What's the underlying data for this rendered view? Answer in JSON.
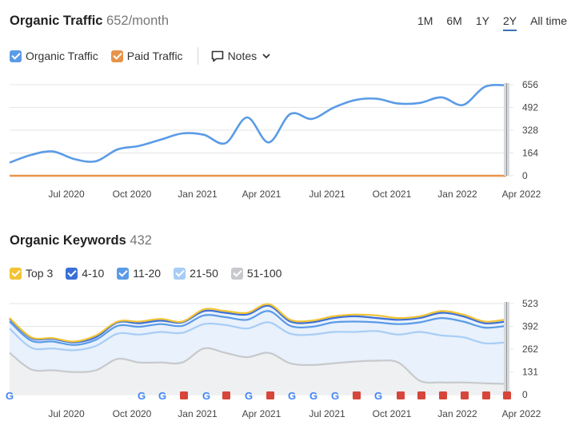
{
  "traffic": {
    "title": "Organic Traffic",
    "value": "652/month",
    "periods": [
      "1M",
      "6M",
      "1Y",
      "2Y",
      "All time"
    ],
    "selected_period": "2Y",
    "legend": [
      {
        "label": "Organic Traffic",
        "color": "#5b9be6"
      },
      {
        "label": "Paid Traffic",
        "color": "#e8934a"
      }
    ],
    "notes_label": "Notes"
  },
  "keywords": {
    "title": "Organic Keywords",
    "value": "432",
    "legend": [
      {
        "label": "Top 3",
        "color": "#f2c335"
      },
      {
        "label": "4-10",
        "color": "#3b70d6"
      },
      {
        "label": "11-20",
        "color": "#5b9be6"
      },
      {
        "label": "21-50",
        "color": "#a8cdf5"
      },
      {
        "label": "51-100",
        "color": "#c7c9cc"
      }
    ]
  },
  "x_ticks": [
    "Jul 2020",
    "Oct 2020",
    "Jan 2021",
    "Apr 2021",
    "Jul 2021",
    "Oct 2021",
    "Jan 2022",
    "Apr 2022"
  ],
  "chart_data": [
    {
      "type": "line",
      "title": "Organic Traffic",
      "y_ticks": [
        "656",
        "492",
        "328",
        "164",
        "0"
      ],
      "ylim": [
        0,
        656
      ],
      "x": [
        "May 2020",
        "Jun 2020",
        "Jul 2020",
        "Aug 2020",
        "Sep 2020",
        "Oct 2020",
        "Nov 2020",
        "Dec 2020",
        "Jan 2021",
        "Feb 2021",
        "Mar 2021",
        "Apr 2021",
        "May 2021",
        "Jun 2021",
        "Jul 2021",
        "Aug 2021",
        "Sep 2021",
        "Oct 2021",
        "Nov 2021",
        "Dec 2021",
        "Jan 2022",
        "Feb 2022",
        "Mar 2022",
        "Apr 2022"
      ],
      "series": [
        {
          "name": "Organic Traffic",
          "color": "#5b9be6",
          "values": [
            95,
            150,
            175,
            120,
            105,
            190,
            215,
            260,
            305,
            295,
            235,
            420,
            240,
            445,
            410,
            490,
            545,
            555,
            520,
            525,
            565,
            510,
            640,
            652
          ]
        },
        {
          "name": "Paid Traffic",
          "color": "#e8934a",
          "values": [
            0,
            0,
            0,
            0,
            0,
            0,
            0,
            0,
            0,
            0,
            0,
            0,
            0,
            0,
            0,
            0,
            0,
            0,
            0,
            0,
            0,
            0,
            0,
            0
          ]
        }
      ]
    },
    {
      "type": "area",
      "title": "Organic Keywords",
      "y_ticks": [
        "523",
        "392",
        "262",
        "131",
        "0"
      ],
      "ylim": [
        0,
        523
      ],
      "x": [
        "May 2020",
        "Jun 2020",
        "Jul 2020",
        "Aug 2020",
        "Sep 2020",
        "Oct 2020",
        "Nov 2020",
        "Dec 2020",
        "Jan 2021",
        "Feb 2021",
        "Mar 2021",
        "Apr 2021",
        "May 2021",
        "Jun 2021",
        "Jul 2021",
        "Aug 2021",
        "Sep 2021",
        "Oct 2021",
        "Nov 2021",
        "Dec 2021",
        "Jan 2022",
        "Feb 2022",
        "Mar 2022",
        "Apr 2022"
      ],
      "series": [
        {
          "name": "Top 3",
          "color": "#f2c335",
          "values": [
            440,
            330,
            325,
            305,
            340,
            420,
            420,
            435,
            420,
            490,
            480,
            470,
            520,
            430,
            425,
            450,
            460,
            455,
            440,
            450,
            480,
            460,
            420,
            432
          ]
        },
        {
          "name": "4-10",
          "color": "#3b70d6",
          "values": [
            435,
            325,
            320,
            300,
            330,
            415,
            410,
            425,
            415,
            480,
            470,
            460,
            510,
            420,
            415,
            440,
            450,
            440,
            430,
            440,
            470,
            450,
            410,
            420
          ]
        },
        {
          "name": "11-20",
          "color": "#5b9be6",
          "values": [
            420,
            310,
            305,
            285,
            315,
            395,
            390,
            405,
            395,
            455,
            445,
            430,
            480,
            395,
            390,
            415,
            420,
            415,
            405,
            415,
            440,
            420,
            385,
            395
          ]
        },
        {
          "name": "21-50",
          "color": "#a8cdf5",
          "values": [
            380,
            270,
            265,
            255,
            280,
            350,
            345,
            360,
            355,
            405,
            400,
            380,
            415,
            350,
            345,
            360,
            360,
            365,
            345,
            360,
            340,
            330,
            295,
            300
          ]
        },
        {
          "name": "51-100",
          "color": "#c7c9cc",
          "values": [
            240,
            145,
            140,
            130,
            140,
            205,
            185,
            185,
            185,
            265,
            240,
            215,
            240,
            180,
            170,
            180,
            190,
            195,
            185,
            80,
            70,
            70,
            65,
            62
          ]
        }
      ]
    }
  ],
  "annotations": [
    "G",
    "G",
    "G",
    "■",
    "G",
    "■",
    "G",
    "■",
    "G",
    "G",
    "G",
    "■",
    "G",
    "■",
    "■",
    "■",
    "■",
    "■",
    "■",
    "■"
  ],
  "annotation_colors": {
    "google": "#4285f4",
    "flag": "#d6463a"
  }
}
